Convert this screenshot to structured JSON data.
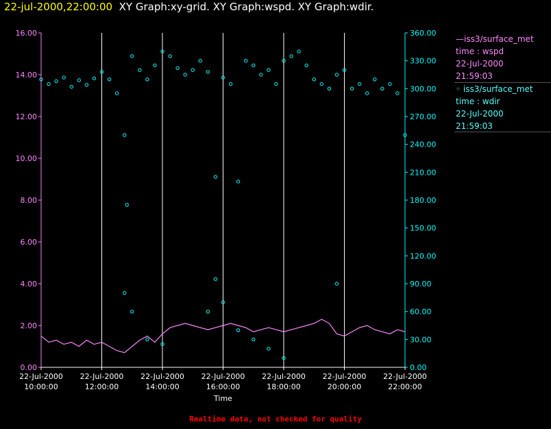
{
  "header": {
    "timestamp": "22-jul-2000,22:00:00",
    "graphs": "XY Graph:xy-grid.  XY Graph:wspd.  XY Graph:wdir."
  },
  "legend": {
    "wspd": {
      "label": "—iss3/surface_met",
      "line1": "time : wspd",
      "line2": "22-Jul-2000",
      "line3": "21:59:03"
    },
    "wdir": {
      "label": "◦ iss3/surface_met",
      "line1": "time : wdir",
      "line2": "22-Jul-2000",
      "line3": "21:59:03"
    }
  },
  "footer": {
    "quality_note": "Realtime data, not checked for quality"
  },
  "chart_data": {
    "type": "line",
    "xlabel": "Time",
    "x_range_hours": [
      10,
      22
    ],
    "x_ticks": [
      {
        "date": "22-Jul-2000",
        "time": "10:00:00"
      },
      {
        "date": "22-Jul-2000",
        "time": "12:00:00"
      },
      {
        "date": "22-Jul-2000",
        "time": "14:00:00"
      },
      {
        "date": "22-Jul-2000",
        "time": "16:00:00"
      },
      {
        "date": "22-Jul-2000",
        "time": "18:00:00"
      },
      {
        "date": "22-Jul-2000",
        "time": "20:00:00"
      },
      {
        "date": "22-Jul-2000",
        "time": "22:00:00"
      }
    ],
    "y_left": {
      "range": [
        0,
        16
      ],
      "ticks": [
        "0.00",
        "2.00",
        "4.00",
        "6.00",
        "8.00",
        "10.00",
        "12.00",
        "14.00",
        "16.00"
      ],
      "color": "#ff88ff"
    },
    "y_right": {
      "range": [
        0,
        360
      ],
      "ticks": [
        "0.00",
        "30.00",
        "60.00",
        "90.00",
        "120.00",
        "150.00",
        "180.00",
        "210.00",
        "240.00",
        "270.00",
        "300.00",
        "330.00",
        "360.00"
      ],
      "color": "#00ffff"
    },
    "grid": "vertical",
    "series": [
      {
        "axis": "left",
        "style": "line",
        "color": "#ff88ff",
        "points": [
          [
            10.0,
            1.5
          ],
          [
            10.25,
            1.2
          ],
          [
            10.5,
            1.3
          ],
          [
            10.75,
            1.1
          ],
          [
            11.0,
            1.2
          ],
          [
            11.25,
            1.0
          ],
          [
            11.5,
            1.3
          ],
          [
            11.75,
            1.1
          ],
          [
            12.0,
            1.2
          ],
          [
            12.25,
            1.0
          ],
          [
            12.5,
            0.8
          ],
          [
            12.75,
            0.7
          ],
          [
            13.0,
            1.0
          ],
          [
            13.25,
            1.3
          ],
          [
            13.5,
            1.5
          ],
          [
            13.75,
            1.2
          ],
          [
            14.0,
            1.6
          ],
          [
            14.25,
            1.9
          ],
          [
            14.5,
            2.0
          ],
          [
            14.75,
            2.1
          ],
          [
            15.0,
            2.0
          ],
          [
            15.25,
            1.9
          ],
          [
            15.5,
            1.8
          ],
          [
            15.75,
            1.9
          ],
          [
            16.0,
            2.0
          ],
          [
            16.25,
            2.1
          ],
          [
            16.5,
            2.0
          ],
          [
            16.75,
            1.9
          ],
          [
            17.0,
            1.7
          ],
          [
            17.25,
            1.8
          ],
          [
            17.5,
            1.9
          ],
          [
            17.75,
            1.8
          ],
          [
            18.0,
            1.7
          ],
          [
            18.25,
            1.8
          ],
          [
            18.5,
            1.9
          ],
          [
            18.75,
            2.0
          ],
          [
            19.0,
            2.1
          ],
          [
            19.25,
            2.3
          ],
          [
            19.5,
            2.1
          ],
          [
            19.75,
            1.6
          ],
          [
            20.0,
            1.5
          ],
          [
            20.25,
            1.7
          ],
          [
            20.5,
            1.9
          ],
          [
            20.75,
            2.0
          ],
          [
            21.0,
            1.8
          ],
          [
            21.25,
            1.7
          ],
          [
            21.5,
            1.6
          ],
          [
            21.75,
            1.8
          ],
          [
            22.0,
            1.7
          ]
        ]
      },
      {
        "axis": "right",
        "style": "scatter",
        "color": "#00ffff",
        "points": [
          [
            10.0,
            310
          ],
          [
            10.25,
            305
          ],
          [
            10.5,
            308
          ],
          [
            10.75,
            312
          ],
          [
            11.0,
            302
          ],
          [
            11.25,
            309
          ],
          [
            11.5,
            304
          ],
          [
            11.75,
            311
          ],
          [
            12.0,
            318
          ],
          [
            12.25,
            310
          ],
          [
            12.5,
            295
          ],
          [
            12.75,
            250
          ],
          [
            12.83,
            175
          ],
          [
            13.0,
            335
          ],
          [
            13.25,
            320
          ],
          [
            13.5,
            310
          ],
          [
            13.75,
            325
          ],
          [
            14.0,
            340
          ],
          [
            14.25,
            335
          ],
          [
            14.5,
            322
          ],
          [
            14.75,
            315
          ],
          [
            15.0,
            320
          ],
          [
            15.25,
            330
          ],
          [
            15.5,
            318
          ],
          [
            15.75,
            205
          ],
          [
            16.0,
            312
          ],
          [
            16.25,
            305
          ],
          [
            16.5,
            200
          ],
          [
            16.75,
            330
          ],
          [
            17.0,
            325
          ],
          [
            17.25,
            315
          ],
          [
            17.5,
            320
          ],
          [
            17.75,
            305
          ],
          [
            18.0,
            330
          ],
          [
            18.25,
            335
          ],
          [
            18.5,
            340
          ],
          [
            18.75,
            325
          ],
          [
            19.0,
            310
          ],
          [
            19.25,
            305
          ],
          [
            19.5,
            300
          ],
          [
            19.75,
            315
          ],
          [
            20.0,
            320
          ],
          [
            20.25,
            300
          ],
          [
            20.5,
            305
          ],
          [
            20.75,
            295
          ],
          [
            21.0,
            310
          ],
          [
            21.25,
            300
          ],
          [
            21.5,
            305
          ],
          [
            21.75,
            295
          ],
          [
            22.0,
            250
          ],
          [
            12.75,
            80
          ],
          [
            13.0,
            60
          ],
          [
            13.5,
            30
          ],
          [
            14.0,
            25
          ],
          [
            15.5,
            60
          ],
          [
            15.75,
            95
          ],
          [
            16.0,
            70
          ],
          [
            16.5,
            40
          ],
          [
            17.0,
            30
          ],
          [
            17.5,
            20
          ],
          [
            18.0,
            10
          ],
          [
            19.75,
            90
          ]
        ]
      }
    ]
  }
}
